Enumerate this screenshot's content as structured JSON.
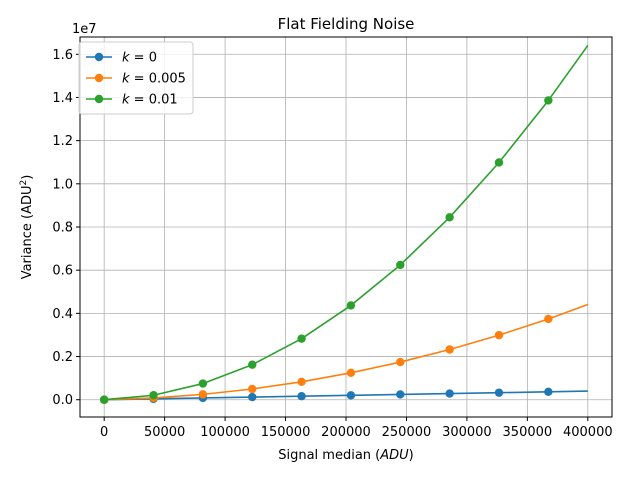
{
  "chart_data": {
    "type": "line",
    "title": "Flat Fielding Noise",
    "xlabel": "Signal median (ADU)",
    "ylabel": "Variance (ADU²)",
    "y_offset_text": "1e7",
    "xlim": [
      -20000,
      420000
    ],
    "ylim": [
      -800000,
      16800000
    ],
    "x_ticks": [
      0,
      50000,
      100000,
      150000,
      200000,
      250000,
      300000,
      350000,
      400000
    ],
    "x_tick_labels": [
      "0",
      "50000",
      "100000",
      "150000",
      "200000",
      "250000",
      "300000",
      "350000",
      "400000"
    ],
    "y_ticks": [
      0,
      2000000,
      4000000,
      6000000,
      8000000,
      10000000,
      12000000,
      14000000,
      16000000
    ],
    "y_tick_labels": [
      "0.0",
      "0.2",
      "0.4",
      "0.6",
      "0.8",
      "1.0",
      "1.2",
      "1.4",
      "1.6"
    ],
    "grid": true,
    "legend_position": "top-left",
    "x": [
      0,
      40816,
      81633,
      122449,
      163265,
      204082,
      244898,
      285714,
      326531,
      367347,
      400000
    ],
    "series": [
      {
        "name": "k = 0",
        "label_prefix": "k",
        "label_value": " = 0",
        "color": "#1f77b4",
        "values": [
          0,
          40816,
          81633,
          122449,
          163265,
          204082,
          244898,
          285714,
          326531,
          367347,
          400000
        ]
      },
      {
        "name": "k = 0.005",
        "label_prefix": "k",
        "label_value": " = 0.005",
        "color": "#ff7f0e",
        "values": [
          0,
          82449,
          248210,
          497255,
          829583,
          1245194,
          1744089,
          2326267,
          2991728,
          3740473,
          4410000
        ]
      },
      {
        "name": "k = 0.01",
        "label_prefix": "k",
        "label_value": " = 0.01",
        "color": "#2ca02c",
        "values": [
          0,
          207415,
          748050,
          1621941,
          2828833,
          4369063,
          6242314,
          8448846,
          10988402,
          13861239,
          16410000
        ]
      }
    ]
  }
}
